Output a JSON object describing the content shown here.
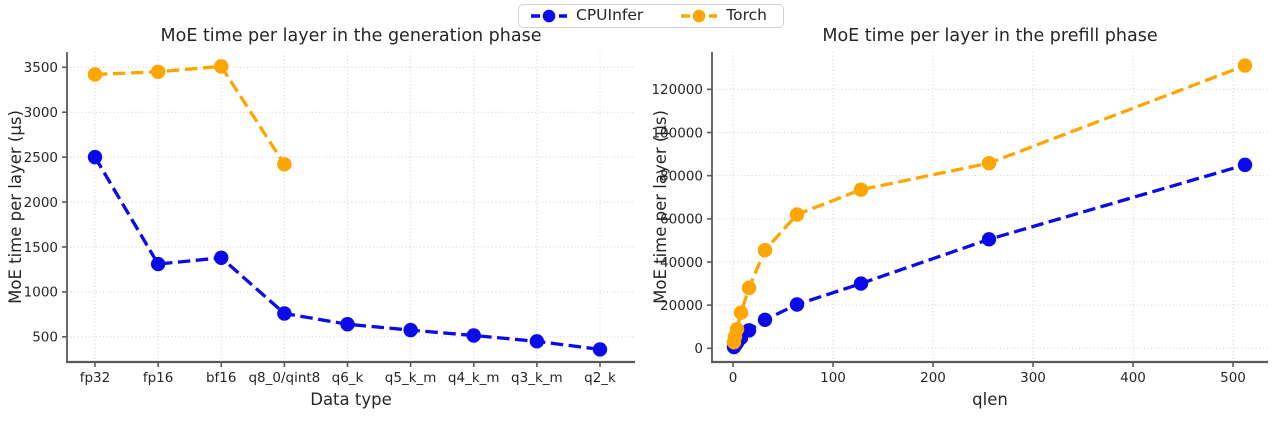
{
  "figure": {
    "background": "#ffffff",
    "text_color": "#262626",
    "grid_color": "#cfcfcf",
    "spine_color": "#5a5a5a",
    "legend": {
      "items": [
        {
          "label": "CPUInfer",
          "color": "#0a0aeb"
        },
        {
          "label": "Torch",
          "color": "#ffa500"
        }
      ]
    }
  },
  "chart_data": [
    {
      "type": "line",
      "title": "MoE time per layer in the generation phase",
      "xlabel": "Data type",
      "ylabel": "MoE time per layer (µs)",
      "x_type": "categorical",
      "categories": [
        "fp32",
        "fp16",
        "bf16",
        "q8_0/qint8",
        "q6_k",
        "q5_k_m",
        "q4_k_m",
        "q3_k_m",
        "q2_k"
      ],
      "yticks": [
        500,
        1000,
        1500,
        2000,
        2500,
        3000,
        3500
      ],
      "ylim": [
        220,
        3670
      ],
      "grid": true,
      "legend_position": "top-center-figure",
      "line_style": "dashed",
      "marker": "circle",
      "series": [
        {
          "name": "CPUInfer",
          "color": "#0a0aeb",
          "values": [
            2500,
            1310,
            1380,
            760,
            640,
            575,
            515,
            450,
            360
          ]
        },
        {
          "name": "Torch",
          "color": "#ffa500",
          "values": [
            3420,
            3450,
            3510,
            2420,
            null,
            null,
            null,
            null,
            null
          ]
        }
      ]
    },
    {
      "type": "line",
      "title": "MoE time per layer in the prefill phase",
      "xlabel": "qlen",
      "ylabel": "MoE time per layer (µs)",
      "x_type": "numeric",
      "x": [
        1,
        2,
        4,
        8,
        16,
        32,
        64,
        128,
        256,
        512
      ],
      "xticks": [
        0,
        100,
        200,
        300,
        400,
        500
      ],
      "xlim": [
        -21,
        535
      ],
      "yticks": [
        0,
        20000,
        40000,
        60000,
        80000,
        100000,
        120000
      ],
      "ylim": [
        -6350,
        137300
      ],
      "grid": true,
      "line_style": "dashed",
      "marker": "circle",
      "series": [
        {
          "name": "CPUInfer",
          "color": "#0a0aeb",
          "values": [
            600,
            1300,
            2500,
            4800,
            8300,
            13200,
            20300,
            30000,
            50500,
            85000
          ]
        },
        {
          "name": "Torch",
          "color": "#ffa500",
          "values": [
            2800,
            5400,
            8800,
            16500,
            28000,
            45500,
            62000,
            73500,
            85800,
            131000
          ]
        }
      ]
    }
  ]
}
